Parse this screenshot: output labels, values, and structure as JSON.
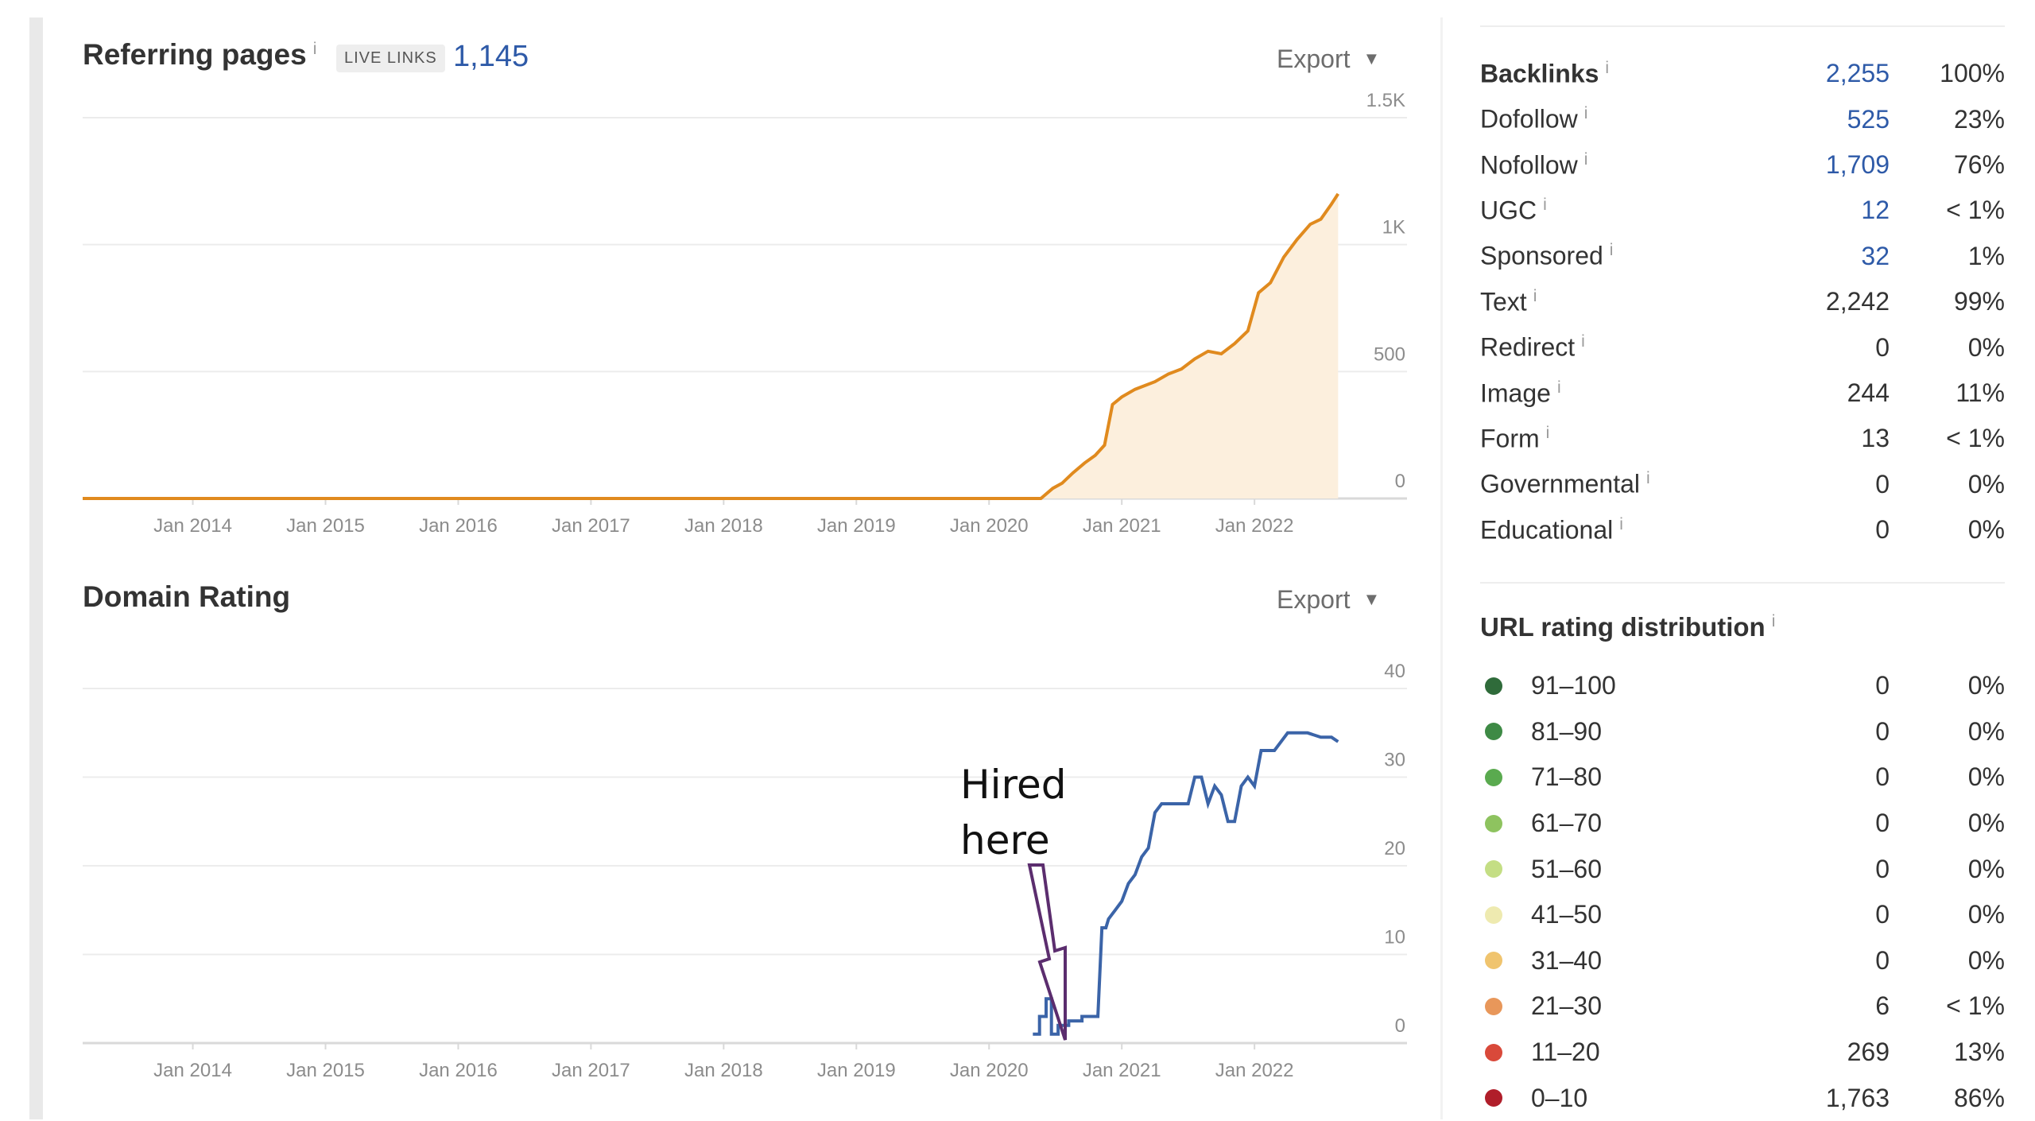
{
  "referring_pages": {
    "title": "Referring pages",
    "info": "i",
    "badge": "LIVE LINKS",
    "count": "1,145",
    "export_label": "Export",
    "export_caret": "▼"
  },
  "domain_rating": {
    "title": "Domain Rating",
    "export_label": "Export",
    "export_caret": "▼"
  },
  "annotation": {
    "text": "Hired\nhere",
    "arrow_color": "#5b2d6e"
  },
  "backlinks": {
    "rows": [
      {
        "label": "Backlinks",
        "value": "2,255",
        "pct": "100%",
        "linked": true,
        "bold": true
      },
      {
        "label": "Dofollow",
        "value": "525",
        "pct": "23%",
        "linked": true
      },
      {
        "label": "Nofollow",
        "value": "1,709",
        "pct": "76%",
        "linked": true
      },
      {
        "label": "UGC",
        "value": "12",
        "pct": "< 1%",
        "linked": true
      },
      {
        "label": "Sponsored",
        "value": "32",
        "pct": "1%",
        "linked": true
      },
      {
        "label": "Text",
        "value": "2,242",
        "pct": "99%"
      },
      {
        "label": "Redirect",
        "value": "0",
        "pct": "0%"
      },
      {
        "label": "Image",
        "value": "244",
        "pct": "11%"
      },
      {
        "label": "Form",
        "value": "13",
        "pct": "< 1%"
      },
      {
        "label": "Governmental",
        "value": "0",
        "pct": "0%"
      },
      {
        "label": "Educational",
        "value": "0",
        "pct": "0%"
      }
    ]
  },
  "url_rating": {
    "title": "URL rating distribution",
    "rows": [
      {
        "label": "91–100",
        "value": "0",
        "pct": "0%",
        "color": "#2f6b3a"
      },
      {
        "label": "81–90",
        "value": "0",
        "pct": "0%",
        "color": "#3e8a45"
      },
      {
        "label": "71–80",
        "value": "0",
        "pct": "0%",
        "color": "#5aaa4f"
      },
      {
        "label": "61–70",
        "value": "0",
        "pct": "0%",
        "color": "#8ec35f"
      },
      {
        "label": "51–60",
        "value": "0",
        "pct": "0%",
        "color": "#c4de84"
      },
      {
        "label": "41–50",
        "value": "0",
        "pct": "0%",
        "color": "#eeeab0"
      },
      {
        "label": "31–40",
        "value": "0",
        "pct": "0%",
        "color": "#f0c46e"
      },
      {
        "label": "21–30",
        "value": "6",
        "pct": "< 1%",
        "color": "#e8975a"
      },
      {
        "label": "11–20",
        "value": "269",
        "pct": "13%",
        "color": "#d9493a"
      },
      {
        "label": "0–10",
        "value": "1,763",
        "pct": "86%",
        "color": "#b01e2a"
      }
    ]
  },
  "chart_data": [
    {
      "type": "area",
      "title": "Referring pages",
      "color": "#e08a1e",
      "fill_color": "#fcefdd",
      "x_ticks": [
        "Jan 2014",
        "Jan 2015",
        "Jan 2016",
        "Jan 2017",
        "Jan 2018",
        "Jan 2019",
        "Jan 2020",
        "Jan 2021",
        "Jan 2022"
      ],
      "y_ticks": [
        "0",
        "500",
        "1K",
        "1.5K"
      ],
      "ylim": [
        0,
        1500
      ],
      "xlim": [
        2013.17,
        2022.67
      ],
      "grid": true,
      "points": [
        [
          2013.17,
          0
        ],
        [
          2020.39,
          0
        ],
        [
          2020.48,
          40
        ],
        [
          2020.55,
          60
        ],
        [
          2020.63,
          100
        ],
        [
          2020.72,
          140
        ],
        [
          2020.8,
          170
        ],
        [
          2020.87,
          210
        ],
        [
          2020.93,
          370
        ],
        [
          2021.0,
          400
        ],
        [
          2021.1,
          430
        ],
        [
          2021.25,
          460
        ],
        [
          2021.35,
          490
        ],
        [
          2021.45,
          510
        ],
        [
          2021.55,
          550
        ],
        [
          2021.65,
          580
        ],
        [
          2021.75,
          570
        ],
        [
          2021.85,
          610
        ],
        [
          2021.95,
          660
        ],
        [
          2022.03,
          810
        ],
        [
          2022.12,
          850
        ],
        [
          2022.22,
          950
        ],
        [
          2022.32,
          1020
        ],
        [
          2022.42,
          1080
        ],
        [
          2022.5,
          1100
        ],
        [
          2022.58,
          1160
        ],
        [
          2022.63,
          1200
        ]
      ]
    },
    {
      "type": "line",
      "title": "Domain Rating",
      "color": "#3b64a8",
      "x_ticks": [
        "Jan 2014",
        "Jan 2015",
        "Jan 2016",
        "Jan 2017",
        "Jan 2018",
        "Jan 2019",
        "Jan 2020",
        "Jan 2021",
        "Jan 2022"
      ],
      "y_ticks": [
        "0",
        "10",
        "20",
        "30",
        "40"
      ],
      "ylim": [
        0,
        40
      ],
      "xlim": [
        2013.17,
        2022.67
      ],
      "grid": true,
      "points": [
        [
          2020.33,
          1
        ],
        [
          2020.38,
          1
        ],
        [
          2020.38,
          3
        ],
        [
          2020.43,
          3
        ],
        [
          2020.43,
          5
        ],
        [
          2020.47,
          5
        ],
        [
          2020.47,
          1
        ],
        [
          2020.52,
          1
        ],
        [
          2020.52,
          2
        ],
        [
          2020.6,
          2
        ],
        [
          2020.6,
          2.5
        ],
        [
          2020.7,
          2.5
        ],
        [
          2020.7,
          3
        ],
        [
          2020.82,
          3
        ],
        [
          2020.85,
          13
        ],
        [
          2020.88,
          13
        ],
        [
          2020.9,
          14
        ],
        [
          2020.95,
          15
        ],
        [
          2021.0,
          16
        ],
        [
          2021.05,
          18
        ],
        [
          2021.1,
          19
        ],
        [
          2021.15,
          21
        ],
        [
          2021.2,
          22
        ],
        [
          2021.25,
          26
        ],
        [
          2021.3,
          27
        ],
        [
          2021.35,
          27
        ],
        [
          2021.5,
          27
        ],
        [
          2021.55,
          30
        ],
        [
          2021.6,
          30
        ],
        [
          2021.65,
          27
        ],
        [
          2021.7,
          29
        ],
        [
          2021.75,
          28
        ],
        [
          2021.8,
          25
        ],
        [
          2021.85,
          25
        ],
        [
          2021.9,
          29
        ],
        [
          2021.95,
          30
        ],
        [
          2022.0,
          29
        ],
        [
          2022.05,
          33
        ],
        [
          2022.15,
          33
        ],
        [
          2022.2,
          34
        ],
        [
          2022.25,
          35
        ],
        [
          2022.3,
          35
        ],
        [
          2022.4,
          35
        ],
        [
          2022.5,
          34.5
        ],
        [
          2022.58,
          34.5
        ],
        [
          2022.63,
          34
        ]
      ]
    }
  ]
}
